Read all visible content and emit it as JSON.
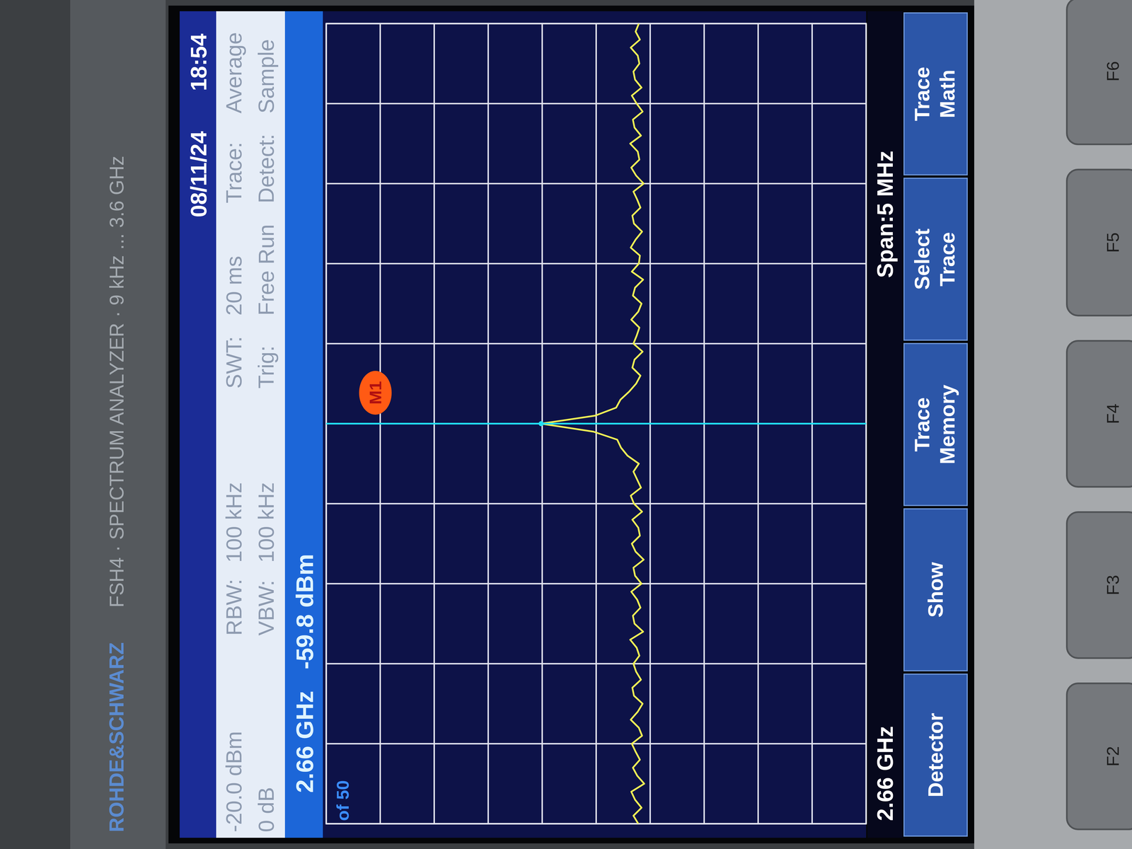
{
  "instrument": {
    "brand": "ROHDE&SCHWARZ",
    "model": "FSH4 · SPECTRUM ANALYZER · 9 kHz ... 3.6 GHz",
    "date": "08/11/24",
    "time": "18:54",
    "info": [
      [
        "-20.0 dBm",
        "RBW:",
        "100 kHz",
        "SWT:",
        "20 ms",
        "Trace:",
        "Average"
      ],
      [
        "0 dB",
        "VBW:",
        "100 kHz",
        "Trig:",
        "Free Run",
        "Detect:",
        "Sample"
      ]
    ],
    "softkeys": [
      [
        "Detector"
      ],
      [
        "Show"
      ],
      [
        "Trace",
        "Memory"
      ],
      [
        "Select",
        "Trace"
      ],
      [
        "Trace",
        "Math"
      ]
    ],
    "keys": [
      "F2",
      "F3",
      "F4",
      "F5",
      "F6"
    ]
  },
  "chart_data": {
    "type": "line",
    "color": "#eeee55",
    "x": [
      2657.5,
      2657.55,
      2657.6,
      2657.65,
      2657.7,
      2657.75,
      2657.8,
      2657.85,
      2657.9,
      2657.95,
      2658,
      2658.05,
      2658.1,
      2658.15,
      2658.2,
      2658.25,
      2658.3,
      2658.35,
      2658.4,
      2658.45,
      2658.5,
      2658.55,
      2658.6,
      2658.65,
      2658.7,
      2658.75,
      2658.8,
      2658.85,
      2658.9,
      2658.95,
      2659,
      2659.05,
      2659.1,
      2659.15,
      2659.2,
      2659.25,
      2659.3,
      2659.35,
      2659.4,
      2659.45,
      2659.5,
      2659.55,
      2659.6,
      2659.65,
      2659.7,
      2659.75,
      2659.8,
      2659.85,
      2659.9,
      2659.95,
      2660,
      2660.05,
      2660.1,
      2660.15,
      2660.2,
      2660.25,
      2660.3,
      2660.35,
      2660.4,
      2660.45,
      2660.5,
      2660.55,
      2660.6,
      2660.65,
      2660.7,
      2660.75,
      2660.8,
      2660.85,
      2660.9,
      2660.95,
      2661,
      2661.05,
      2661.1,
      2661.15,
      2661.2,
      2661.25,
      2661.3,
      2661.35,
      2661.4,
      2661.45,
      2661.5,
      2661.55,
      2661.6,
      2661.65,
      2661.7,
      2661.75,
      2661.8,
      2661.85,
      2661.9,
      2661.95,
      2662,
      2662.05,
      2662.1,
      2662.15,
      2662.2,
      2662.25,
      2662.3,
      2662.35,
      2662.4,
      2662.45,
      2662.5
    ],
    "values": [
      -77.8,
      -76.9,
      -78.4,
      -77.2,
      -76.5,
      -78.9,
      -77.6,
      -76.8,
      -78.1,
      -77.3,
      -76.6,
      -78.5,
      -77.9,
      -76.4,
      -77.7,
      -78.6,
      -77.0,
      -76.7,
      -78.3,
      -77.4,
      -76.9,
      -78.0,
      -77.5,
      -76.3,
      -78.7,
      -77.1,
      -76.8,
      -78.2,
      -77.6,
      -76.5,
      -78.4,
      -77.2,
      -76.9,
      -78.8,
      -77.3,
      -76.6,
      -78.1,
      -77.8,
      -76.7,
      -78.5,
      -77.0,
      -76.4,
      -78.3,
      -77.6,
      -76.9,
      -77.9,
      -75.8,
      -74.6,
      -73.9,
      -69.5,
      -59.8,
      -69.8,
      -73.7,
      -74.5,
      -76.1,
      -77.4,
      -78.2,
      -76.7,
      -77.1,
      -78.6,
      -76.9,
      -77.5,
      -78.0,
      -76.5,
      -77.8,
      -78.4,
      -76.8,
      -77.2,
      -78.7,
      -76.6,
      -77.9,
      -78.1,
      -76.4,
      -77.3,
      -78.5,
      -77.0,
      -76.7,
      -78.2,
      -77.6,
      -76.9,
      -78.8,
      -77.4,
      -76.5,
      -78.0,
      -77.7,
      -76.3,
      -78.3,
      -77.1,
      -76.8,
      -78.6,
      -77.5,
      -76.6,
      -78.4,
      -77.2,
      -76.9,
      -78.0,
      -77.7,
      -76.4,
      -78.1,
      -77.3,
      -77.9
    ],
    "xlim": [
      2657.5,
      2662.5
    ],
    "xticks": [
      2657.5,
      2658,
      2658.5,
      2659,
      2659.5,
      2660,
      2660.5,
      2661,
      2661.5,
      2662,
      2662.5
    ],
    "ylim": [
      -120,
      -20
    ],
    "yticks": [
      -120,
      -110,
      -100,
      -90,
      -80,
      -70,
      -60,
      -50,
      -40,
      -30,
      -20
    ],
    "grid": true,
    "tick_labels": false,
    "center_label": "2.66 GHz",
    "span_label": "Span:5 MHz",
    "sweep_label": "of 50",
    "marker": {
      "label": "M1",
      "x": 2660,
      "y": -59.8,
      "freq_label": "2.66 GHz",
      "level_label": "-59.8 dBm"
    }
  }
}
